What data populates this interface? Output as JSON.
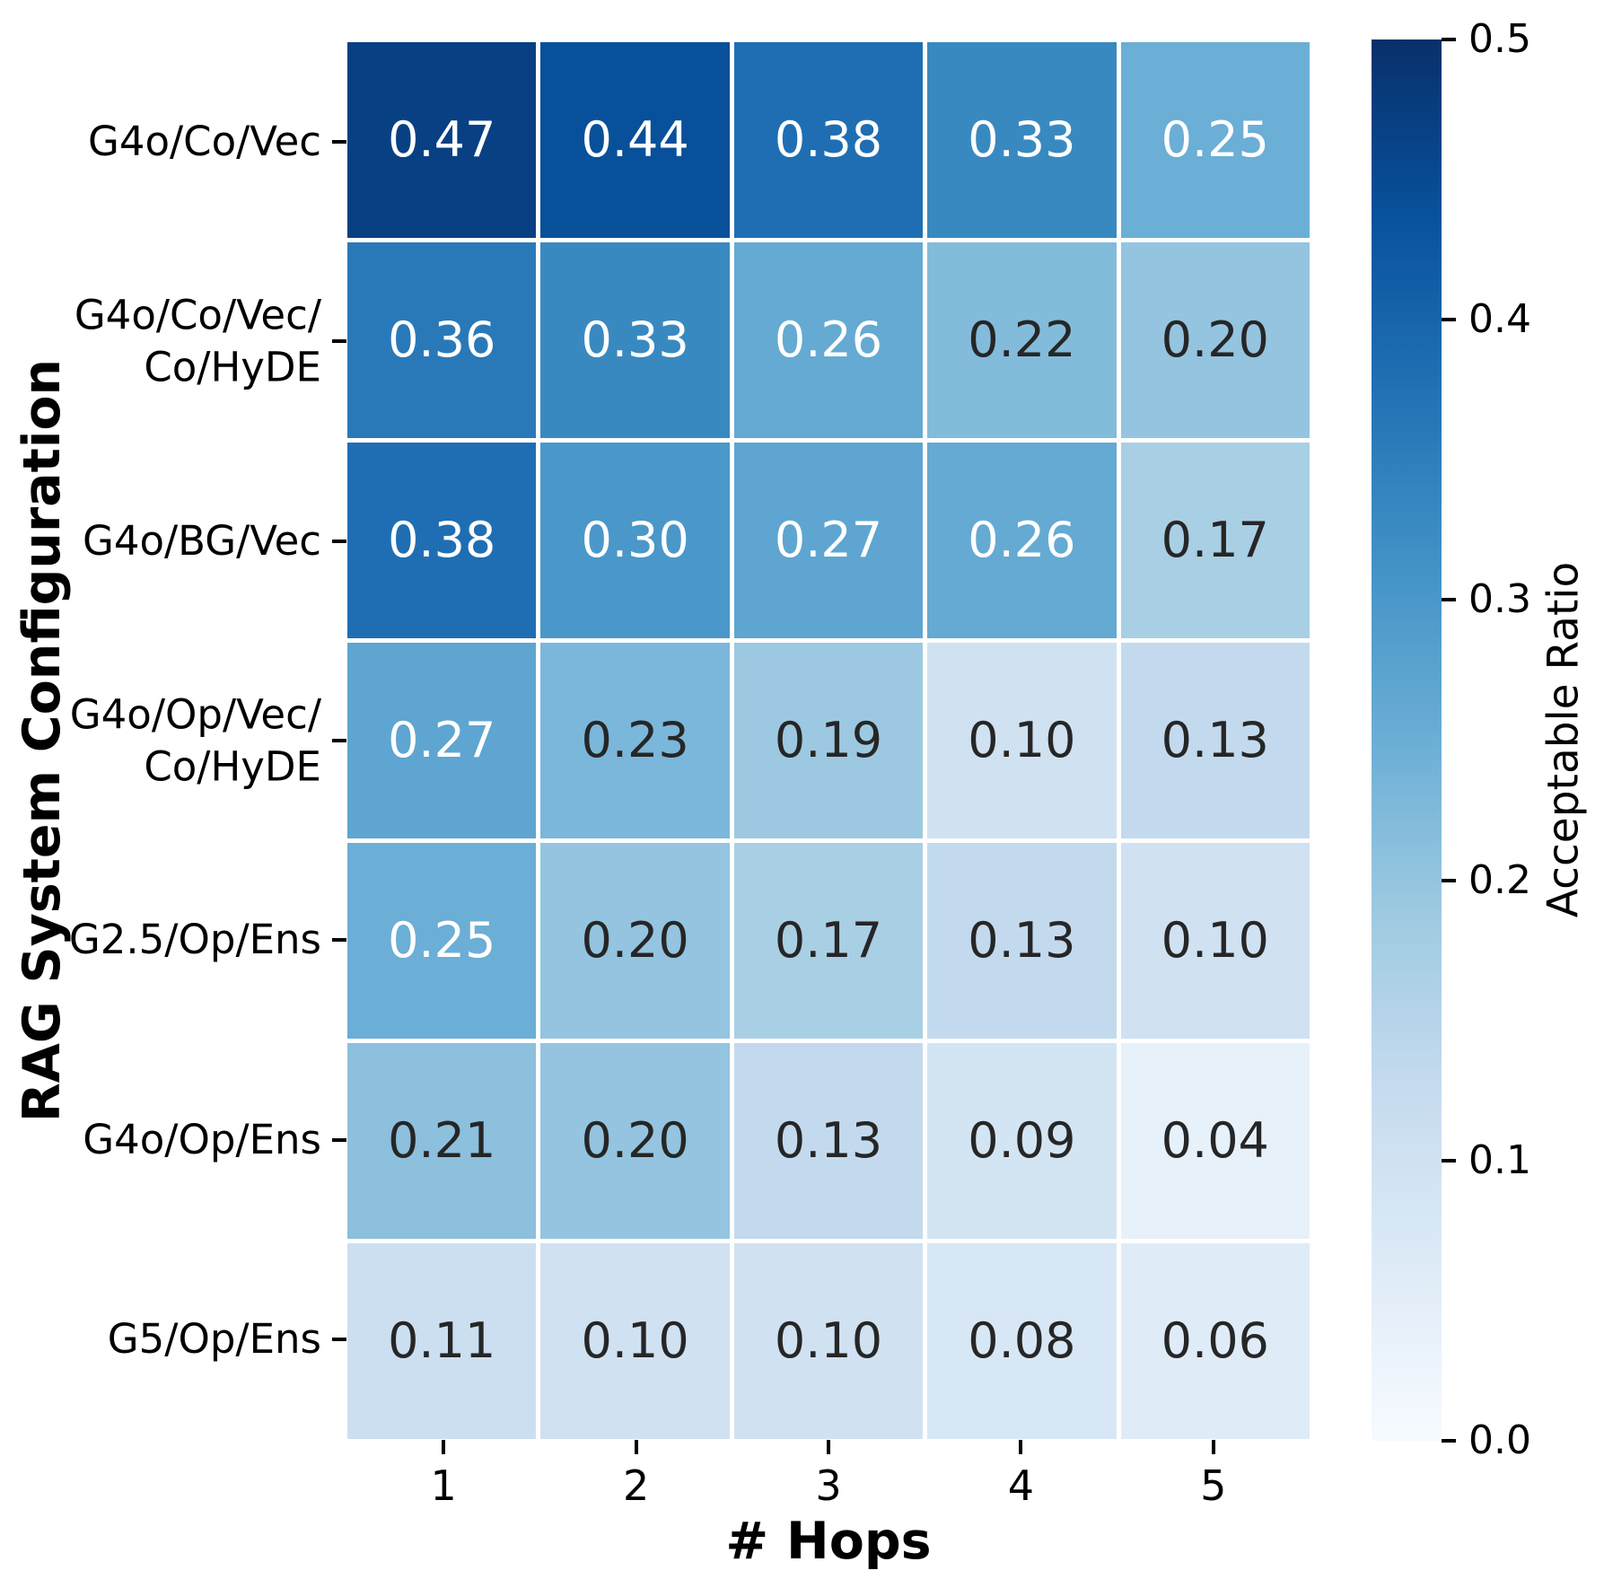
{
  "chart_data": {
    "type": "heatmap",
    "xlabel": "# Hops",
    "ylabel": "RAG System Configuration",
    "colorbar_label": "Acceptable Ratio",
    "columns": [
      "1",
      "2",
      "3",
      "4",
      "5"
    ],
    "rows": [
      [
        "G4o/Co/Vec"
      ],
      [
        "G4o/Co/Vec/",
        "Co/HyDE"
      ],
      [
        "G4o/BG/Vec"
      ],
      [
        "G4o/Op/Vec/",
        "Co/HyDE"
      ],
      [
        "G2.5/Op/Ens"
      ],
      [
        "G4o/Op/Ens"
      ],
      [
        "G5/Op/Ens"
      ]
    ],
    "values": [
      [
        0.47,
        0.44,
        0.38,
        0.33,
        0.25
      ],
      [
        0.36,
        0.33,
        0.26,
        0.22,
        0.2
      ],
      [
        0.38,
        0.3,
        0.27,
        0.26,
        0.17
      ],
      [
        0.27,
        0.23,
        0.19,
        0.1,
        0.13
      ],
      [
        0.25,
        0.2,
        0.17,
        0.13,
        0.1
      ],
      [
        0.21,
        0.2,
        0.13,
        0.09,
        0.04
      ],
      [
        0.11,
        0.1,
        0.1,
        0.08,
        0.06
      ]
    ],
    "vmin": 0.0,
    "vmax": 0.5,
    "colormap": "Blues",
    "colormap_stops": [
      "#f7fbff",
      "#deebf7",
      "#c6dbef",
      "#9ecae1",
      "#6baed6",
      "#4292c6",
      "#2171b5",
      "#08519c",
      "#08306b"
    ],
    "colorbar_ticks": [
      "0.5",
      "0.4",
      "0.3",
      "0.2",
      "0.1",
      "0.0"
    ],
    "annotation_colors": {
      "light": "#ffffff",
      "dark": "#262626"
    },
    "background_color": "#ffffff",
    "axis_color": "#000000",
    "legend_position": "right-colorbar",
    "grid": "off"
  }
}
